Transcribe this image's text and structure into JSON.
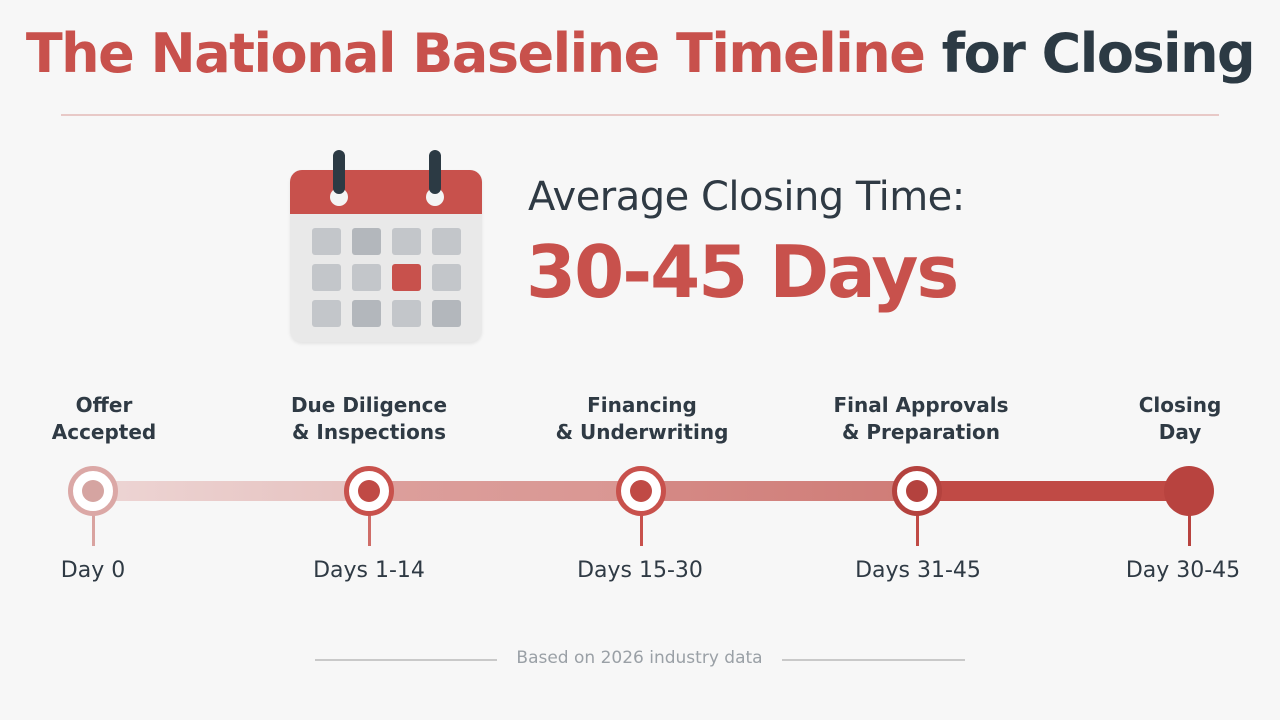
{
  "title": {
    "accent_text": "The National Baseline Timeline",
    "dark_text": "for Closing"
  },
  "headline": {
    "label": "Average Closing Time:",
    "value": "30-45 Days"
  },
  "stages": [
    {
      "line1": "Offer",
      "line2": "Accepted",
      "days": "Day 0"
    },
    {
      "line1": "Due Diligence",
      "line2": "& Inspections",
      "days": "Days 1-14"
    },
    {
      "line1": "Financing",
      "line2": "& Underwriting",
      "days": "Days 15-30"
    },
    {
      "line1": "Final Approvals",
      "line2": "& Preparation",
      "days": "Days 31-45"
    },
    {
      "line1": "Closing",
      "line2": "Day",
      "days": "Day 30-45"
    }
  ],
  "footer": {
    "note": "Based on 2026 industry data"
  },
  "icons": {
    "calendar": "calendar-icon"
  },
  "colors": {
    "accent": "#c8514c",
    "dark": "#2c3a44",
    "background": "#f7f7f7"
  }
}
